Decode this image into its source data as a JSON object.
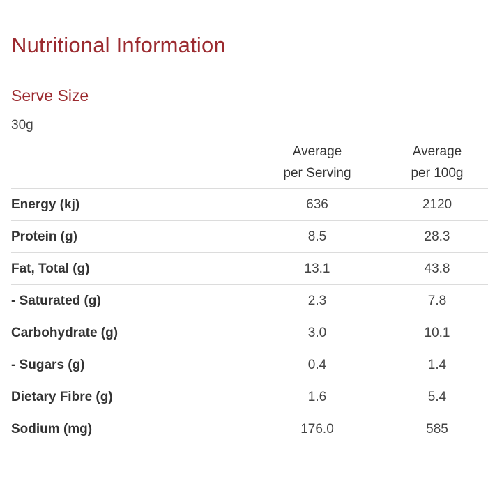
{
  "title": "Nutritional Information",
  "serve_size": {
    "heading": "Serve Size",
    "value": "30g"
  },
  "table": {
    "columns": [
      {
        "line1": "",
        "line2": ""
      },
      {
        "line1": "Average",
        "line2": "per Serving"
      },
      {
        "line1": "Average",
        "line2": "per 100g"
      }
    ],
    "rows": [
      {
        "label": "Energy (kj)",
        "per_serving": "636",
        "per_100g": "2120"
      },
      {
        "label": "Protein (g)",
        "per_serving": "8.5",
        "per_100g": "28.3"
      },
      {
        "label": "Fat, Total (g)",
        "per_serving": "13.1",
        "per_100g": "43.8"
      },
      {
        "label": "- Saturated (g)",
        "per_serving": "2.3",
        "per_100g": "7.8"
      },
      {
        "label": "Carbohydrate (g)",
        "per_serving": "3.0",
        "per_100g": "10.1"
      },
      {
        "label": "- Sugars (g)",
        "per_serving": "0.4",
        "per_100g": "1.4"
      },
      {
        "label": "Dietary Fibre (g)",
        "per_serving": "1.6",
        "per_100g": "5.4"
      },
      {
        "label": "Sodium (mg)",
        "per_serving": "176.0",
        "per_100g": "585"
      }
    ]
  },
  "colors": {
    "heading": "#9b2a2f",
    "text": "#333333",
    "divider": "#dcdcdc"
  }
}
